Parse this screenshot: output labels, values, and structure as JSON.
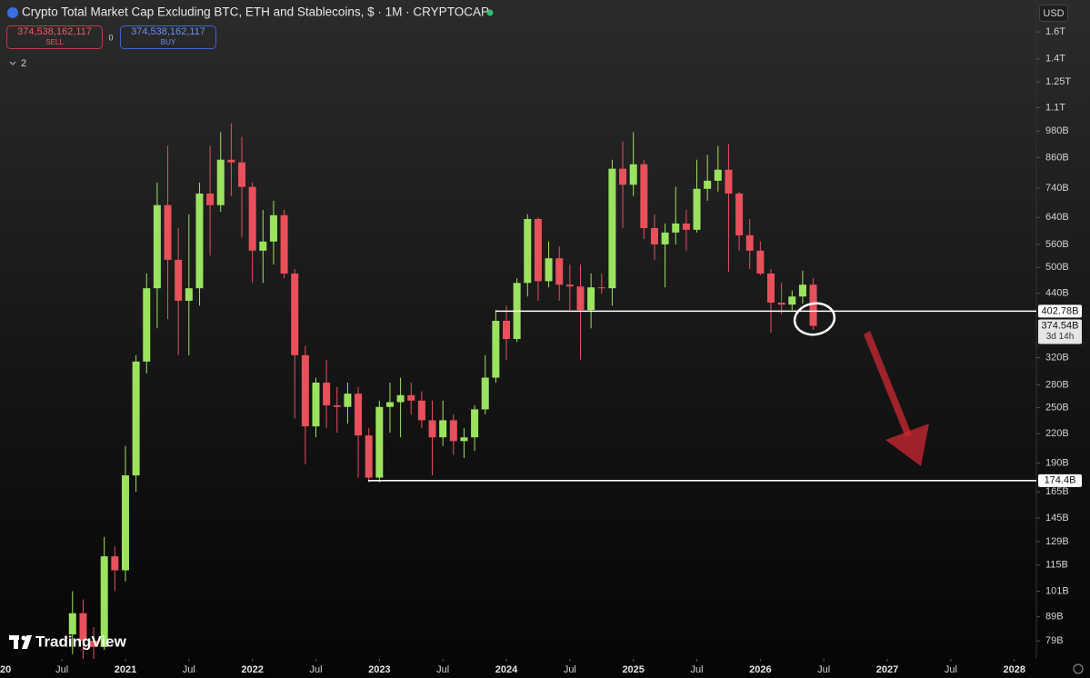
{
  "header": {
    "title": "Crypto Total Market Cap Excluding BTC, ETH and Stablecoins, $ · 1M · CRYPTOCAP",
    "sell_price": "374,538,162,117",
    "sell_label": "SELL",
    "spread": "0",
    "buy_price": "374,538,162,117",
    "buy_label": "BUY",
    "indicators": "2",
    "currency": "USD",
    "brand": "TradingView"
  },
  "chart_data": {
    "type": "candlestick",
    "log_y": true,
    "up_color": "#9be35f",
    "down_color": "#e8505b",
    "x": [
      "2020-08",
      "2020-09",
      "2020-10",
      "2020-11",
      "2020-12",
      "2021-01",
      "2021-02",
      "2021-03",
      "2021-04",
      "2021-05",
      "2021-06",
      "2021-07",
      "2021-08",
      "2021-09",
      "2021-10",
      "2021-11",
      "2021-12",
      "2022-01",
      "2022-02",
      "2022-03",
      "2022-04",
      "2022-05",
      "2022-06",
      "2022-07",
      "2022-08",
      "2022-09",
      "2022-10",
      "2022-11",
      "2022-12",
      "2023-01",
      "2023-02",
      "2023-03",
      "2023-04",
      "2023-05",
      "2023-06",
      "2023-07",
      "2023-08",
      "2023-09",
      "2023-10",
      "2023-11",
      "2023-12",
      "2024-01",
      "2024-02",
      "2024-03",
      "2024-04",
      "2024-05",
      "2024-06",
      "2024-07",
      "2024-08",
      "2024-09",
      "2024-10",
      "2024-11",
      "2024-12",
      "2025-01",
      "2025-02",
      "2025-03",
      "2025-04",
      "2025-05",
      "2025-06",
      "2025-07",
      "2025-08",
      "2025-09",
      "2025-10",
      "2025-11",
      "2025-12",
      "2026-01",
      "2026-02",
      "2026-03",
      "2026-04",
      "2026-05",
      "2026-06"
    ],
    "open": [
      81.6,
      90.6,
      79.1,
      76.7,
      120,
      112,
      179,
      314,
      451,
      680,
      519,
      424,
      451,
      720,
      680,
      851,
      840,
      744,
      543,
      568,
      647,
      485,
      324,
      228,
      283,
      253,
      251,
      268,
      218,
      177,
      251,
      257,
      266,
      259,
      235,
      216,
      235,
      212,
      216,
      248,
      290,
      384,
      351,
      463,
      635,
      467,
      523,
      459,
      455,
      405,
      453,
      451,
      814,
      752,
      832,
      607,
      560,
      594,
      621,
      602,
      737,
      767,
      810,
      720,
      586,
      543,
      485,
      420,
      416,
      433,
      459
    ],
    "high": [
      101,
      97,
      84.6,
      132,
      126,
      207,
      324,
      485,
      760,
      911,
      607,
      650,
      760,
      911,
      975,
      1019,
      953,
      760,
      664,
      695,
      664,
      496,
      339,
      290,
      317,
      277,
      283,
      277,
      226,
      259,
      283,
      290,
      283,
      271,
      259,
      259,
      242,
      226,
      253,
      324,
      405,
      414,
      474,
      650,
      641,
      568,
      555,
      507,
      507,
      485,
      485,
      851,
      932,
      975,
      851,
      650,
      621,
      744,
      664,
      851,
      871,
      911,
      919,
      727,
      635,
      568,
      496,
      463,
      446,
      492,
      474
    ],
    "low": [
      74.0,
      72.3,
      72.3,
      75.6,
      101,
      106,
      165,
      296,
      370,
      387,
      324,
      324,
      414,
      530,
      658,
      711,
      580,
      463,
      463,
      507,
      474,
      237,
      189,
      216,
      226,
      221,
      231,
      177,
      173,
      173,
      221,
      216,
      242,
      226,
      179,
      207,
      198,
      195,
      202,
      242,
      283,
      317,
      346,
      433,
      424,
      453,
      424,
      405,
      317,
      370,
      439,
      414,
      607,
      711,
      575,
      519,
      453,
      560,
      543,
      594,
      695,
      727,
      489,
      543,
      496,
      481,
      362,
      396,
      405,
      418,
      367
    ],
    "close": [
      90.6,
      79.1,
      76.7,
      120,
      112,
      179,
      314,
      451,
      680,
      519,
      424,
      451,
      720,
      680,
      851,
      840,
      744,
      543,
      568,
      647,
      485,
      324,
      228,
      283,
      253,
      251,
      268,
      218,
      177,
      251,
      257,
      266,
      259,
      235,
      216,
      235,
      212,
      216,
      248,
      290,
      384,
      351,
      463,
      635,
      467,
      523,
      459,
      455,
      405,
      453,
      451,
      814,
      752,
      832,
      607,
      560,
      594,
      621,
      602,
      737,
      767,
      810,
      720,
      586,
      543,
      485,
      420,
      416,
      433,
      459,
      374.54
    ],
    "xlim": [
      "2020-01",
      "2028-03"
    ],
    "xticks": [
      {
        "value": "2020-01",
        "label": "20"
      },
      {
        "value": "2020-07",
        "label": "Jul"
      },
      {
        "value": "2021-01",
        "label": "2021"
      },
      {
        "value": "2021-07",
        "label": "Jul"
      },
      {
        "value": "2022-01",
        "label": "2022"
      },
      {
        "value": "2022-07",
        "label": "Jul"
      },
      {
        "value": "2023-01",
        "label": "2023"
      },
      {
        "value": "2023-07",
        "label": "Jul"
      },
      {
        "value": "2024-01",
        "label": "2024"
      },
      {
        "value": "2024-07",
        "label": "Jul"
      },
      {
        "value": "2025-01",
        "label": "2025"
      },
      {
        "value": "2025-07",
        "label": "Jul"
      },
      {
        "value": "2026-01",
        "label": "2026"
      },
      {
        "value": "2026-07",
        "label": "Jul"
      },
      {
        "value": "2027-01",
        "label": "2027"
      },
      {
        "value": "2027-07",
        "label": "Jul"
      },
      {
        "value": "2028-01",
        "label": "2028"
      }
    ],
    "ylim": [
      72.3,
      1674
    ],
    "yticks": [
      {
        "value": 1600,
        "label": "1.6T"
      },
      {
        "value": 1400,
        "label": "1.4T"
      },
      {
        "value": 1250,
        "label": "1.25T"
      },
      {
        "value": 1100,
        "label": "1.1T"
      },
      {
        "value": 980,
        "label": "980B"
      },
      {
        "value": 860,
        "label": "860B"
      },
      {
        "value": 740,
        "label": "740B"
      },
      {
        "value": 640,
        "label": "640B"
      },
      {
        "value": 560,
        "label": "560B"
      },
      {
        "value": 500,
        "label": "500B"
      },
      {
        "value": 440,
        "label": "440B"
      },
      {
        "value": 320,
        "label": "320B"
      },
      {
        "value": 280,
        "label": "280B"
      },
      {
        "value": 250,
        "label": "250B"
      },
      {
        "value": 220,
        "label": "220B"
      },
      {
        "value": 190,
        "label": "190B"
      },
      {
        "value": 165,
        "label": "165B"
      },
      {
        "value": 145,
        "label": "145B"
      },
      {
        "value": 129,
        "label": "129B"
      },
      {
        "value": 115,
        "label": "115B"
      },
      {
        "value": 101,
        "label": "101B"
      },
      {
        "value": 89,
        "label": "89B"
      },
      {
        "value": 79,
        "label": "79B"
      }
    ],
    "levels": [
      {
        "value": 402.78,
        "label": "402.78B"
      },
      {
        "value": 174.4,
        "label": "174.4B"
      }
    ],
    "last_price": {
      "value": 374.54,
      "label": "374.54B"
    },
    "countdown": "3d 14h"
  }
}
